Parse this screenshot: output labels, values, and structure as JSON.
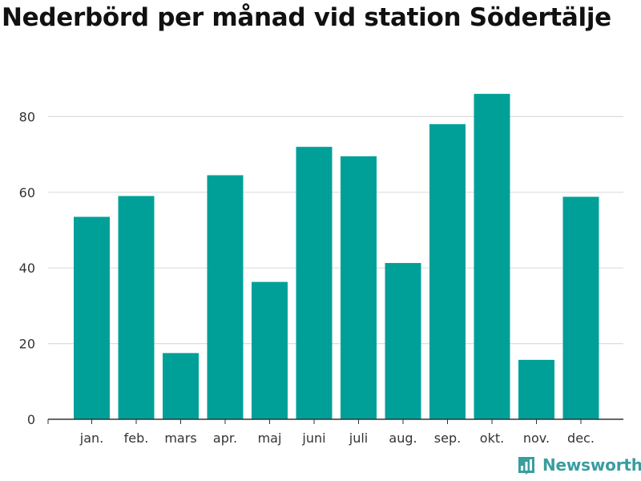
{
  "chart_data": {
    "type": "bar",
    "title": "Nederbörd per månad vid station Södertälje",
    "categories": [
      "jan.",
      "feb.",
      "mars",
      "apr.",
      "maj",
      "juni",
      "juli",
      "aug.",
      "sep.",
      "okt.",
      "nov.",
      "dec."
    ],
    "values": [
      53.5,
      59,
      17.5,
      64.5,
      36.3,
      72,
      69.5,
      41.3,
      78,
      86,
      15.7,
      58.8
    ],
    "xlabel": "",
    "ylabel": "",
    "ylim": [
      0,
      90
    ],
    "yticks": [
      0,
      20,
      40,
      60,
      80
    ],
    "grid": true,
    "bar_color": "#00a099",
    "grid_color": "#dddddd"
  },
  "branding": {
    "name": "Newsworthy",
    "color": "#3a9da0"
  }
}
